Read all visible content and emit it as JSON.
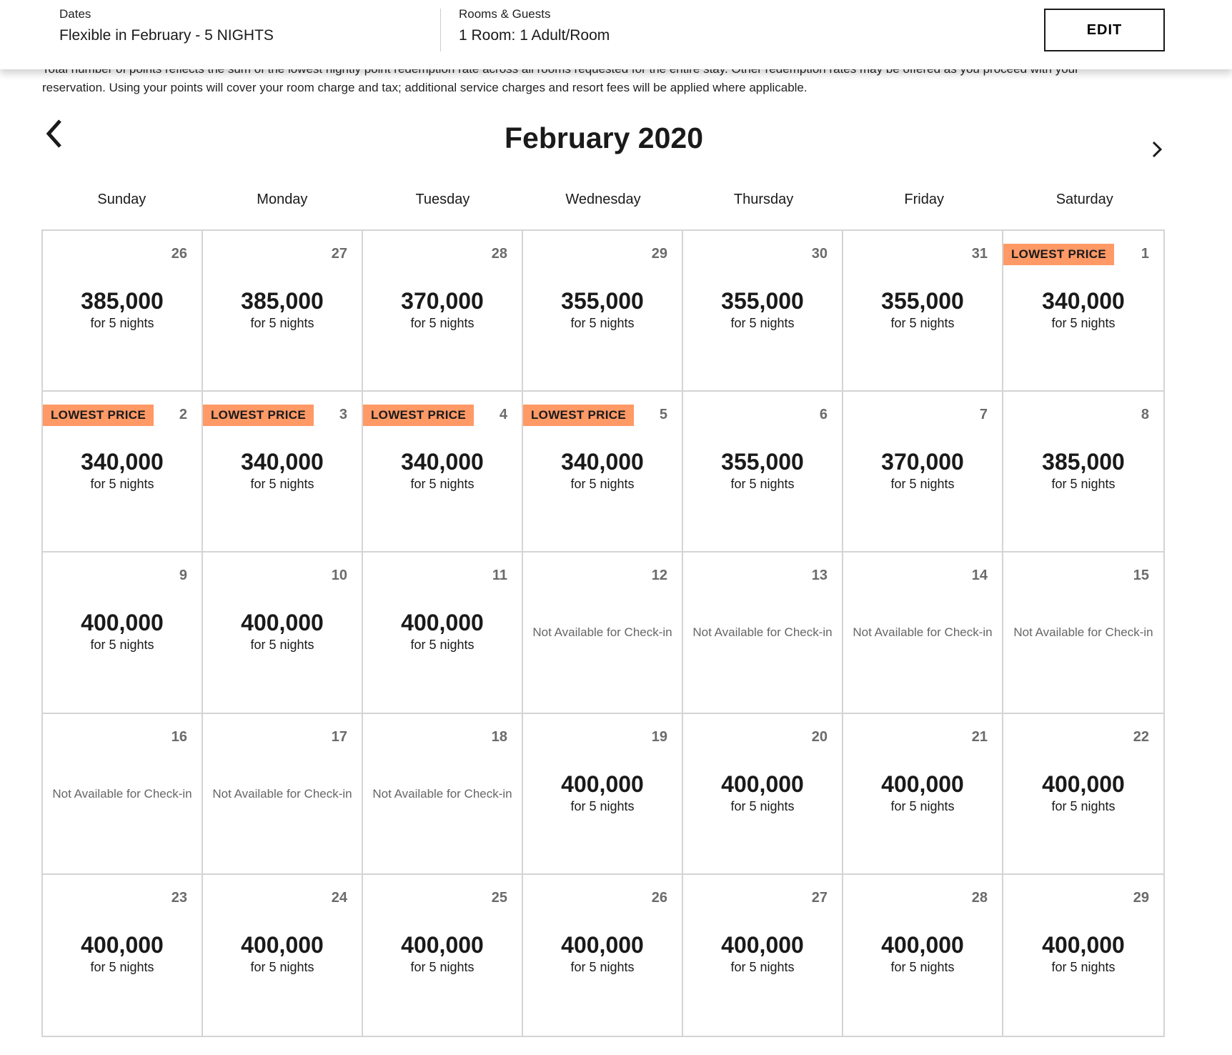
{
  "header": {
    "dates_label": "Dates",
    "dates_value": "Flexible in February - 5 NIGHTS",
    "rooms_label": "Rooms & Guests",
    "rooms_value": "1 Room: 1 Adult/Room",
    "edit_label": "EDIT"
  },
  "notice": "Total number of points reflects the sum of the lowest nightly point redemption rate across all rooms requested for the entire stay. Other redemption rates may be offered as you proceed with your reservation. Using your points will cover your room charge and tax; additional service charges and resort fees will be applied where applicable.",
  "calendar": {
    "title": "February 2020",
    "weekdays": [
      "Sunday",
      "Monday",
      "Tuesday",
      "Wednesday",
      "Thursday",
      "Friday",
      "Saturday"
    ],
    "badge_label": "LOWEST PRICE",
    "badge_color": "#ff9966",
    "nights_label": "for 5 nights",
    "na_label": "Not Available for Check-in",
    "days": [
      {
        "day": "26",
        "price": "385,000"
      },
      {
        "day": "27",
        "price": "385,000"
      },
      {
        "day": "28",
        "price": "370,000"
      },
      {
        "day": "29",
        "price": "355,000"
      },
      {
        "day": "30",
        "price": "355,000"
      },
      {
        "day": "31",
        "price": "355,000"
      },
      {
        "day": "1",
        "price": "340,000",
        "lowest": true
      },
      {
        "day": "2",
        "price": "340,000",
        "lowest": true
      },
      {
        "day": "3",
        "price": "340,000",
        "lowest": true
      },
      {
        "day": "4",
        "price": "340,000",
        "lowest": true
      },
      {
        "day": "5",
        "price": "340,000",
        "lowest": true
      },
      {
        "day": "6",
        "price": "355,000"
      },
      {
        "day": "7",
        "price": "370,000"
      },
      {
        "day": "8",
        "price": "385,000"
      },
      {
        "day": "9",
        "price": "400,000"
      },
      {
        "day": "10",
        "price": "400,000"
      },
      {
        "day": "11",
        "price": "400,000"
      },
      {
        "day": "12",
        "available": false
      },
      {
        "day": "13",
        "available": false
      },
      {
        "day": "14",
        "available": false
      },
      {
        "day": "15",
        "available": false
      },
      {
        "day": "16",
        "available": false
      },
      {
        "day": "17",
        "available": false
      },
      {
        "day": "18",
        "available": false
      },
      {
        "day": "19",
        "price": "400,000"
      },
      {
        "day": "20",
        "price": "400,000"
      },
      {
        "day": "21",
        "price": "400,000"
      },
      {
        "day": "22",
        "price": "400,000"
      },
      {
        "day": "23",
        "price": "400,000"
      },
      {
        "day": "24",
        "price": "400,000"
      },
      {
        "day": "25",
        "price": "400,000"
      },
      {
        "day": "26",
        "price": "400,000"
      },
      {
        "day": "27",
        "price": "400,000"
      },
      {
        "day": "28",
        "price": "400,000"
      },
      {
        "day": "29",
        "price": "400,000"
      }
    ]
  }
}
